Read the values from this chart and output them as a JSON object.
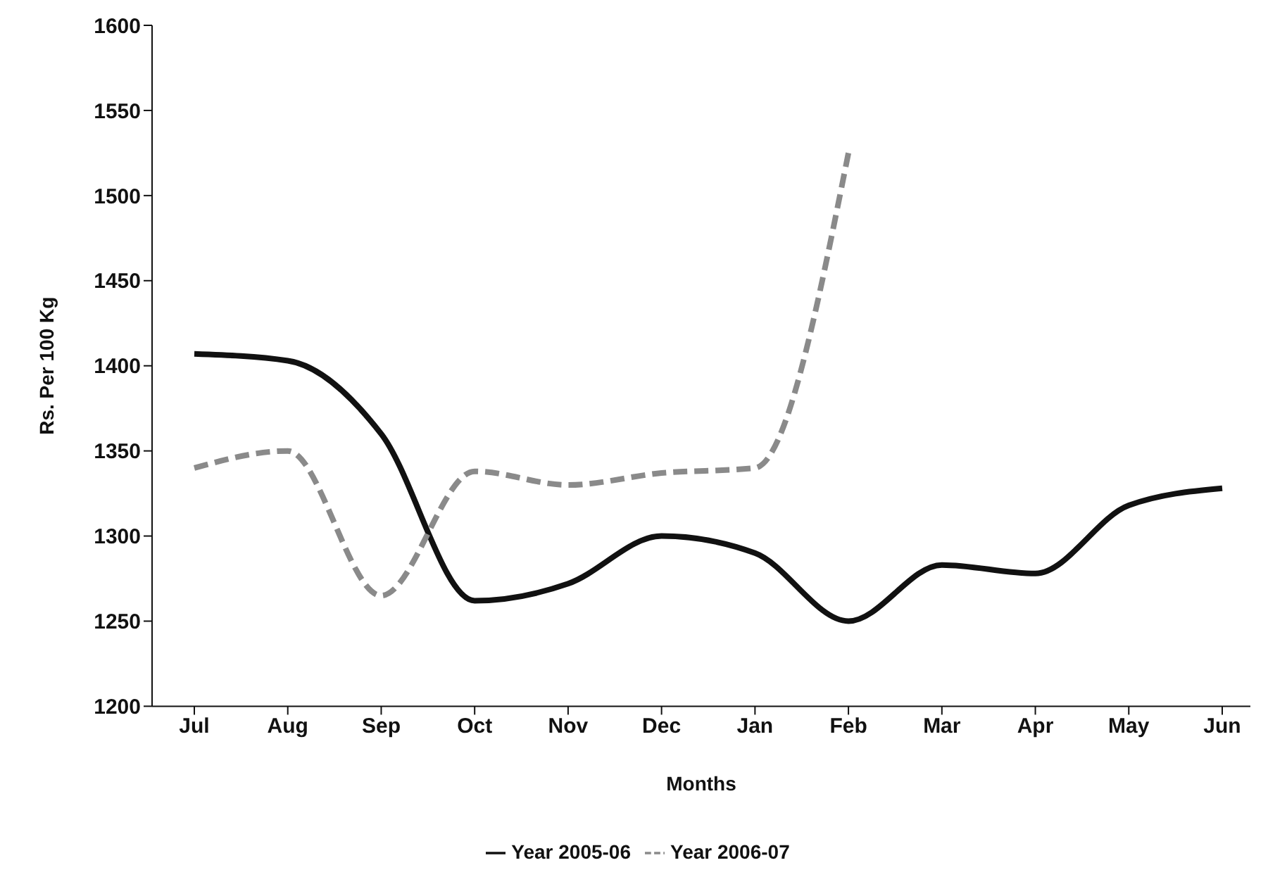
{
  "chart_data": {
    "type": "line",
    "xlabel": "Months",
    "ylabel": "Rs. Per 100 Kg",
    "categories": [
      "Jul",
      "Aug",
      "Sep",
      "Oct",
      "Nov",
      "Dec",
      "Jan",
      "Feb",
      "Mar",
      "Apr",
      "May",
      "Jun"
    ],
    "series": [
      {
        "name": "Year 2005-06",
        "color": "#111111",
        "line_style": "solid",
        "values": [
          1407,
          1403,
          1360,
          1262,
          1272,
          1300,
          1290,
          1250,
          1283,
          1278,
          1318,
          1328
        ]
      },
      {
        "name": "Year 2006-07",
        "color": "#8a8a8a",
        "line_style": "dashed",
        "values": [
          1340,
          1350,
          1265,
          1338,
          1330,
          1337,
          1340,
          1525,
          null,
          null,
          null,
          null
        ]
      }
    ],
    "ylim": [
      1200,
      1600
    ],
    "yticks": [
      1200,
      1250,
      1300,
      1350,
      1400,
      1450,
      1500,
      1550,
      1600
    ],
    "grid": false,
    "legend": "bottom",
    "marker": "none"
  }
}
